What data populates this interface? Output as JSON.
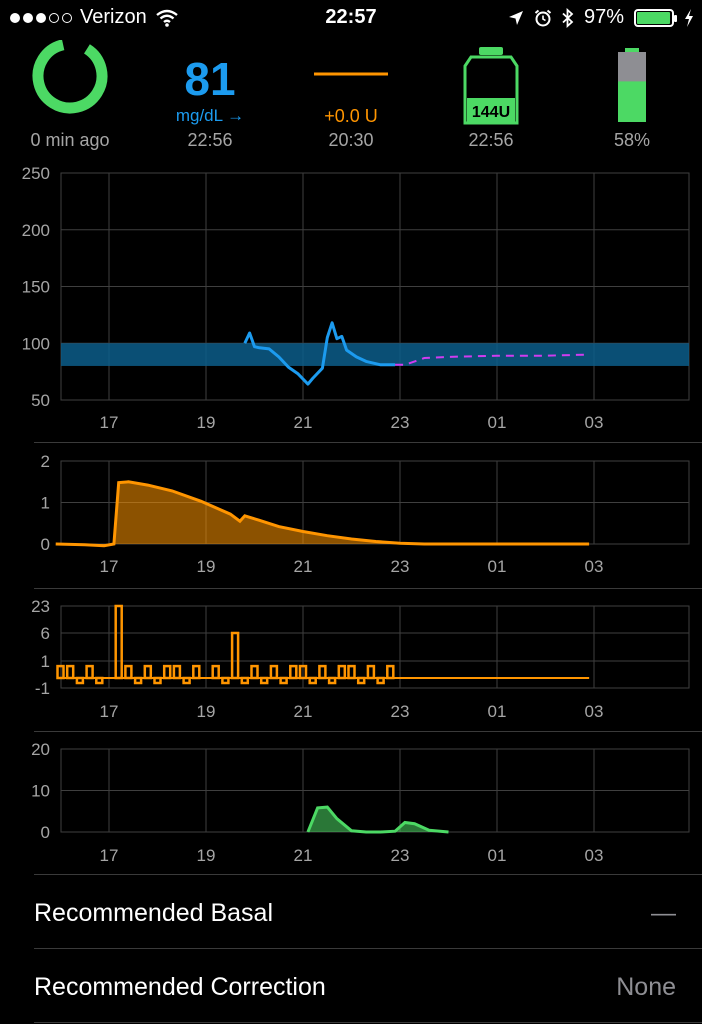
{
  "status_bar": {
    "carrier": "Verizon",
    "signal_bars_filled": 3,
    "signal_bars_total": 5,
    "time": "22:57",
    "battery_percent": "97%",
    "battery_level": 0.97
  },
  "hud": {
    "loop": {
      "status": "0 min ago",
      "color": "#4cd964"
    },
    "glucose": {
      "value": "81",
      "unit": "mg/dL →",
      "time": "22:56"
    },
    "basal": {
      "value": "+0.0 U",
      "time": "20:30"
    },
    "reservoir": {
      "value": "144U",
      "time": "22:56"
    },
    "pump_battery": {
      "value": "58%",
      "level": 0.58
    }
  },
  "chart_data": [
    {
      "type": "line",
      "name": "glucose",
      "x_ticks": [
        "17",
        "19",
        "21",
        "23",
        "01",
        "03"
      ],
      "y_ticks": [
        "250",
        "200",
        "150",
        "100",
        "50"
      ],
      "ylim": [
        50,
        250
      ],
      "target_range": [
        80,
        100
      ],
      "series": [
        {
          "role": "observed",
          "color": "#1c9bef",
          "x": [
            19.8,
            19.9,
            20.0,
            20.1,
            20.3,
            20.5,
            20.7,
            20.9,
            21.1,
            21.2,
            21.4,
            21.5,
            21.6,
            21.7,
            21.8,
            21.9,
            22.1,
            22.3,
            22.6,
            22.9
          ],
          "y": [
            100,
            109,
            97,
            96,
            95,
            88,
            79,
            73,
            64,
            69,
            78,
            105,
            118,
            104,
            106,
            94,
            88,
            84,
            81,
            81
          ]
        },
        {
          "role": "predicted",
          "color": "#d03cf0",
          "x": [
            22.9,
            23.1,
            23.5,
            24.0,
            25.0,
            26.0,
            26.9
          ],
          "y": [
            81,
            81,
            87,
            88,
            89,
            89,
            90
          ]
        }
      ]
    },
    {
      "type": "area",
      "name": "insulin-on-board",
      "x_ticks": [
        "17",
        "19",
        "21",
        "23",
        "01",
        "03"
      ],
      "y_ticks": [
        "2",
        "1",
        "0"
      ],
      "ylim": [
        0,
        2
      ],
      "color": "#ff9500",
      "x": [
        15.9,
        16.5,
        16.9,
        17.1,
        17.2,
        17.4,
        17.8,
        18.3,
        18.9,
        19.5,
        19.7,
        19.8,
        20.1,
        20.5,
        21.0,
        21.5,
        22.0,
        22.5,
        23.0,
        23.5,
        24.0,
        25.0,
        26.0,
        26.9
      ],
      "y": [
        0.0,
        -0.02,
        -0.04,
        0.0,
        1.48,
        1.5,
        1.42,
        1.28,
        1.03,
        0.72,
        0.55,
        0.68,
        0.57,
        0.42,
        0.3,
        0.2,
        0.12,
        0.06,
        0.02,
        0.0,
        0.0,
        0.0,
        0.0,
        0.0
      ]
    },
    {
      "type": "bar",
      "name": "insulin-delivery",
      "x_ticks": [
        "17",
        "19",
        "21",
        "23",
        "01",
        "03"
      ],
      "y_ticks": [
        "23",
        "6",
        "1",
        "-1"
      ],
      "color": "#ff9500",
      "x": [
        16.0,
        16.2,
        16.4,
        16.6,
        16.8,
        17.2,
        17.4,
        17.6,
        17.8,
        18.0,
        18.2,
        18.4,
        18.6,
        18.8,
        19.2,
        19.4,
        19.6,
        19.8,
        20.0,
        20.2,
        20.4,
        20.6,
        20.8,
        21.0,
        21.2,
        21.4,
        21.6,
        21.8,
        22.0,
        22.2,
        22.4,
        22.6,
        22.8
      ],
      "y": [
        0.7,
        0.7,
        -0.5,
        0.7,
        -0.5,
        23,
        0.7,
        -0.5,
        0.7,
        -0.5,
        0.7,
        0.7,
        -0.5,
        0.7,
        0.7,
        -0.5,
        6,
        -0.5,
        0.7,
        -0.5,
        0.7,
        -0.5,
        0.7,
        0.7,
        -0.5,
        0.7,
        -0.5,
        0.7,
        0.7,
        -0.5,
        0.7,
        -0.5,
        0.7
      ],
      "baseline_until": 26.9
    },
    {
      "type": "area",
      "name": "carbs-on-board",
      "x_ticks": [
        "17",
        "19",
        "21",
        "23",
        "01",
        "03"
      ],
      "y_ticks": [
        "20",
        "10",
        "0"
      ],
      "ylim": [
        0,
        20
      ],
      "color": "#4cd964",
      "x": [
        21.1,
        21.3,
        21.5,
        21.7,
        22.0,
        22.3,
        22.6,
        22.9,
        23.1,
        23.3,
        23.6,
        24.0
      ],
      "y": [
        0,
        5.8,
        6.0,
        3.2,
        0.3,
        0,
        0,
        0.2,
        2.3,
        2.0,
        0.4,
        0
      ]
    }
  ],
  "rows": [
    {
      "label": "Recommended Basal",
      "value": "—"
    },
    {
      "label": "Recommended Correction",
      "value": "None"
    }
  ]
}
